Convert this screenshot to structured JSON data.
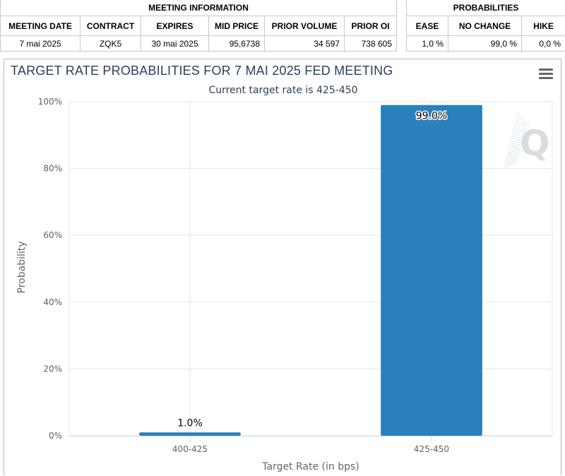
{
  "meeting_info": {
    "group_title": "MEETING INFORMATION",
    "headers": [
      "MEETING DATE",
      "CONTRACT",
      "EXPIRES",
      "MID PRICE",
      "PRIOR VOLUME",
      "PRIOR OI"
    ],
    "row": [
      "7 mai 2025",
      "ZQK5",
      "30 mai 2025",
      "95,6738",
      "34 597",
      "738 605"
    ]
  },
  "probabilities": {
    "group_title": "PROBABILITIES",
    "headers": [
      "EASE",
      "NO CHANGE",
      "HIKE"
    ],
    "row": [
      "1,0 %",
      "99,0 %",
      "0,0 %"
    ]
  },
  "chart_data": {
    "type": "bar",
    "title": "TARGET RATE PROBABILITIES FOR 7 MAI 2025 FED MEETING",
    "subtitle": "Current target rate is 425-450",
    "xlabel": "Target Rate (in bps)",
    "ylabel": "Probability",
    "categories": [
      "400-425",
      "425-450"
    ],
    "values": [
      1.0,
      99.0
    ],
    "data_labels": [
      "1.0%",
      "99.0%"
    ],
    "ylim": [
      0,
      100
    ],
    "yticks": [
      0,
      20,
      40,
      60,
      80,
      100
    ],
    "ytick_labels": [
      "0%",
      "20%",
      "40%",
      "60%",
      "80%",
      "100%"
    ],
    "bar_color": "#2a7fbd",
    "grid": true,
    "legend": "none",
    "watermark_letter": "Q"
  },
  "icons": {
    "menu": "hamburger-menu-icon"
  }
}
